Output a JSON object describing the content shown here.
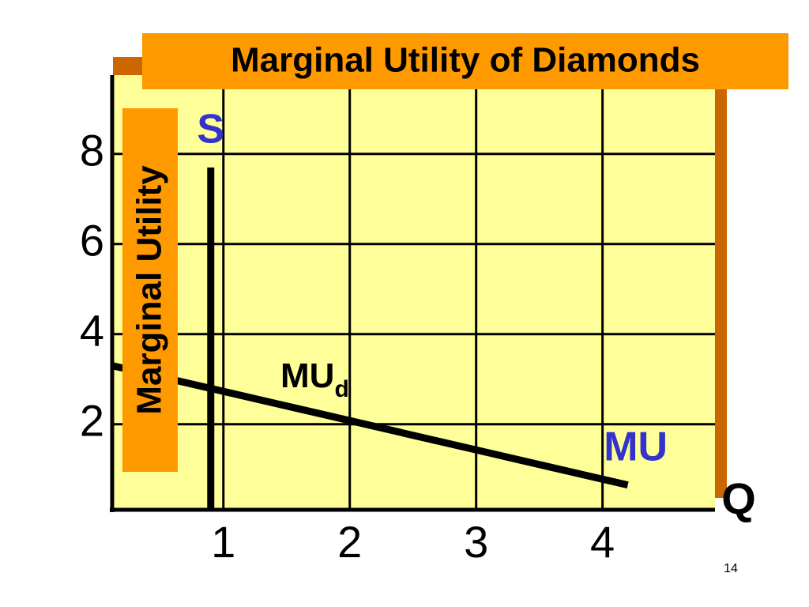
{
  "chart_data": {
    "type": "line",
    "title": "Marginal Utility of Diamonds",
    "y_label": "Marginal Utility",
    "x_label": "Q",
    "annotation": {
      "text": "MU",
      "sub": "d"
    },
    "page_number": "14",
    "xlim": [
      0.12,
      4.89
    ],
    "xticks": [
      1,
      2,
      3,
      4
    ],
    "ylim": [
      0.1,
      9.75
    ],
    "yticks": [
      2,
      4,
      6,
      8
    ],
    "grid": true,
    "label_color": "#3333cc",
    "series": [
      {
        "name": "S",
        "color": "#000000",
        "x": [
          0.9,
          0.9
        ],
        "values": [
          7.7,
          0.1
        ]
      },
      {
        "name": "MU",
        "color": "#000000",
        "x": [
          0.12,
          4.2
        ],
        "values": [
          3.3,
          0.65
        ]
      }
    ]
  }
}
